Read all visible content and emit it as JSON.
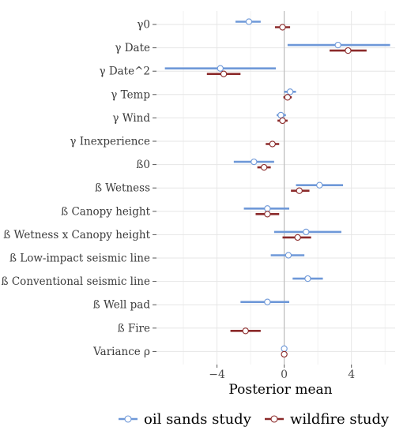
{
  "chart_data": {
    "type": "forest",
    "xlabel": "Posterior mean",
    "ylabel": "",
    "xticks": [
      -4,
      0,
      4
    ],
    "xlim": [
      -7.6,
      6.6
    ],
    "grid": true,
    "legend_position": "bottom",
    "parameters": [
      "γ0",
      "γ Date",
      "γ Date^2",
      "γ Temp",
      "γ Wind",
      "γ Inexperience",
      "ß0",
      "ß Wetness",
      "ß Canopy height",
      "ß Wetness x Canopy height",
      "ß Low-impact seismic line",
      "ß Conventional seismic line",
      "ß Well pad",
      "ß Fire",
      "Variance ρ"
    ],
    "series": [
      {
        "name": "oil sands study",
        "color": "#6e98d8",
        "points": [
          {
            "parameter": "γ0",
            "mean": -2.1,
            "lower": -2.9,
            "upper": -1.4
          },
          {
            "parameter": "γ Date",
            "mean": 3.2,
            "lower": 0.2,
            "upper": 6.3
          },
          {
            "parameter": "γ Date^2",
            "mean": -3.8,
            "lower": -7.1,
            "upper": -0.5
          },
          {
            "parameter": "γ Temp",
            "mean": 0.35,
            "lower": 0.0,
            "upper": 0.7
          },
          {
            "parameter": "γ Wind",
            "mean": -0.2,
            "lower": -0.45,
            "upper": 0.1
          },
          {
            "parameter": "ß0",
            "mean": -1.8,
            "lower": -3.0,
            "upper": -0.6
          },
          {
            "parameter": "ß Wetness",
            "mean": 2.1,
            "lower": 0.7,
            "upper": 3.5
          },
          {
            "parameter": "ß Canopy height",
            "mean": -1.0,
            "lower": -2.4,
            "upper": 0.3
          },
          {
            "parameter": "ß Wetness x Canopy height",
            "mean": 1.3,
            "lower": -0.6,
            "upper": 3.4
          },
          {
            "parameter": "ß Low-impact seismic line",
            "mean": 0.25,
            "lower": -0.8,
            "upper": 1.2
          },
          {
            "parameter": "ß Conventional seismic line",
            "mean": 1.4,
            "lower": 0.5,
            "upper": 2.3
          },
          {
            "parameter": "ß Well pad",
            "mean": -1.0,
            "lower": -2.6,
            "upper": 0.3
          },
          {
            "parameter": "Variance ρ",
            "mean": 0.0,
            "lower": 0.0,
            "upper": 0.0
          }
        ]
      },
      {
        "name": "wildfire study",
        "color": "#8b2a2a",
        "points": [
          {
            "parameter": "γ0",
            "mean": -0.1,
            "lower": -0.55,
            "upper": 0.35
          },
          {
            "parameter": "γ Date",
            "mean": 3.8,
            "lower": 2.7,
            "upper": 4.9
          },
          {
            "parameter": "γ Date^2",
            "mean": -3.6,
            "lower": -4.6,
            "upper": -2.6
          },
          {
            "parameter": "γ Temp",
            "mean": 0.2,
            "lower": -0.05,
            "upper": 0.45
          },
          {
            "parameter": "γ Wind",
            "mean": -0.1,
            "lower": -0.4,
            "upper": 0.2
          },
          {
            "parameter": "γ Inexperience",
            "mean": -0.7,
            "lower": -1.1,
            "upper": -0.3
          },
          {
            "parameter": "ß0",
            "mean": -1.2,
            "lower": -1.6,
            "upper": -0.8
          },
          {
            "parameter": "ß Wetness",
            "mean": 0.9,
            "lower": 0.4,
            "upper": 1.5
          },
          {
            "parameter": "ß Canopy height",
            "mean": -1.0,
            "lower": -1.7,
            "upper": -0.3
          },
          {
            "parameter": "ß Wetness x Canopy height",
            "mean": 0.8,
            "lower": -0.1,
            "upper": 1.6
          },
          {
            "parameter": "ß Fire",
            "mean": -2.3,
            "lower": -3.2,
            "upper": -1.4
          },
          {
            "parameter": "Variance ρ",
            "mean": 0.0,
            "lower": 0.0,
            "upper": 0.0
          }
        ]
      }
    ]
  }
}
